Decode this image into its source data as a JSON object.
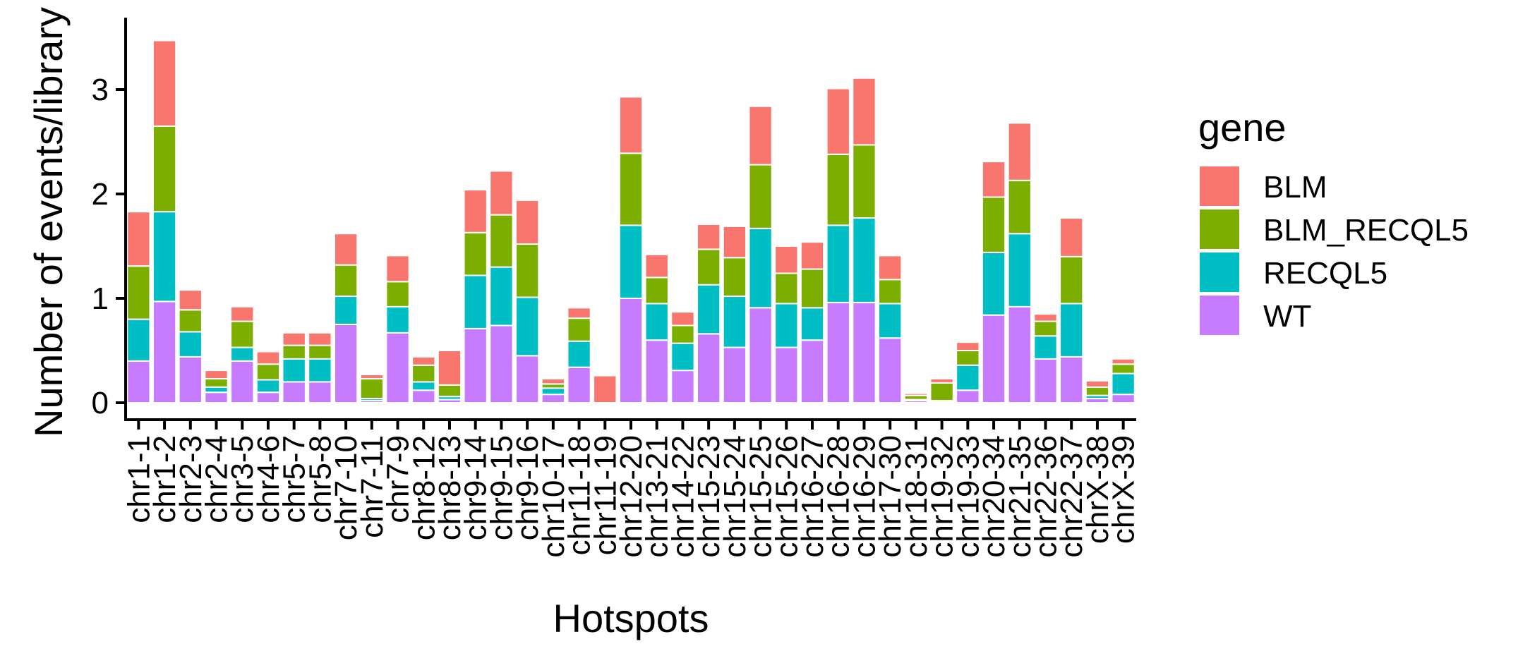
{
  "chart_data": {
    "type": "bar",
    "stacked": true,
    "xlabel": "Hotspots",
    "ylabel": "Number of events/library",
    "ylim": [
      0,
      3.6
    ],
    "yticks": [
      0,
      1,
      2,
      3
    ],
    "grid": false,
    "legend": {
      "title": "gene",
      "position": "right"
    },
    "categories": [
      "chr1-1",
      "chr1-2",
      "chr2-3",
      "chr2-4",
      "chr3-5",
      "chr4-6",
      "chr5-7",
      "chr5-8",
      "chr7-10",
      "chr7-11",
      "chr7-9",
      "chr8-12",
      "chr8-13",
      "chr9-14",
      "chr9-15",
      "chr9-16",
      "chr10-17",
      "chr11-18",
      "chr11-19",
      "chr12-20",
      "chr13-21",
      "chr14-22",
      "chr15-23",
      "chr15-24",
      "chr15-25",
      "chr15-26",
      "chr16-27",
      "chr16-28",
      "chr16-29",
      "chr17-30",
      "chr18-31",
      "chr19-32",
      "chr19-33",
      "chr20-34",
      "chr21-35",
      "chr22-36",
      "chr22-37",
      "chrX-38",
      "chrX-39"
    ],
    "series": [
      {
        "name": "WT",
        "color": "#C77CFF",
        "values": [
          0.4,
          0.97,
          0.44,
          0.1,
          0.4,
          0.1,
          0.2,
          0.2,
          0.75,
          0.02,
          0.67,
          0.12,
          0.03,
          0.71,
          0.74,
          0.45,
          0.08,
          0.34,
          0.0,
          1.0,
          0.6,
          0.31,
          0.66,
          0.53,
          0.91,
          0.53,
          0.6,
          0.96,
          0.96,
          0.62,
          0.02,
          0.01,
          0.12,
          0.84,
          0.92,
          0.42,
          0.44,
          0.04,
          0.08
        ]
      },
      {
        "name": "RECQL5",
        "color": "#00BFC4",
        "values": [
          0.4,
          0.86,
          0.24,
          0.05,
          0.13,
          0.12,
          0.22,
          0.22,
          0.27,
          0.02,
          0.25,
          0.08,
          0.03,
          0.51,
          0.56,
          0.56,
          0.06,
          0.25,
          0.0,
          0.7,
          0.35,
          0.26,
          0.47,
          0.49,
          0.76,
          0.42,
          0.31,
          0.74,
          0.81,
          0.33,
          0.01,
          0.01,
          0.24,
          0.6,
          0.7,
          0.22,
          0.51,
          0.03,
          0.2
        ]
      },
      {
        "name": "BLM_RECQL5",
        "color": "#7CAE00",
        "values": [
          0.51,
          0.82,
          0.21,
          0.08,
          0.25,
          0.15,
          0.13,
          0.13,
          0.3,
          0.19,
          0.24,
          0.16,
          0.11,
          0.41,
          0.5,
          0.51,
          0.04,
          0.22,
          0.0,
          0.69,
          0.25,
          0.17,
          0.34,
          0.37,
          0.61,
          0.29,
          0.37,
          0.68,
          0.7,
          0.23,
          0.04,
          0.17,
          0.14,
          0.53,
          0.51,
          0.14,
          0.45,
          0.08,
          0.09
        ]
      },
      {
        "name": "BLM",
        "color": "#F8766D",
        "values": [
          0.52,
          0.82,
          0.19,
          0.08,
          0.14,
          0.12,
          0.12,
          0.12,
          0.3,
          0.04,
          0.25,
          0.08,
          0.33,
          0.41,
          0.42,
          0.42,
          0.05,
          0.1,
          0.26,
          0.54,
          0.22,
          0.13,
          0.24,
          0.3,
          0.56,
          0.26,
          0.26,
          0.63,
          0.64,
          0.23,
          0.02,
          0.04,
          0.08,
          0.34,
          0.55,
          0.07,
          0.37,
          0.06,
          0.05
        ]
      }
    ]
  }
}
